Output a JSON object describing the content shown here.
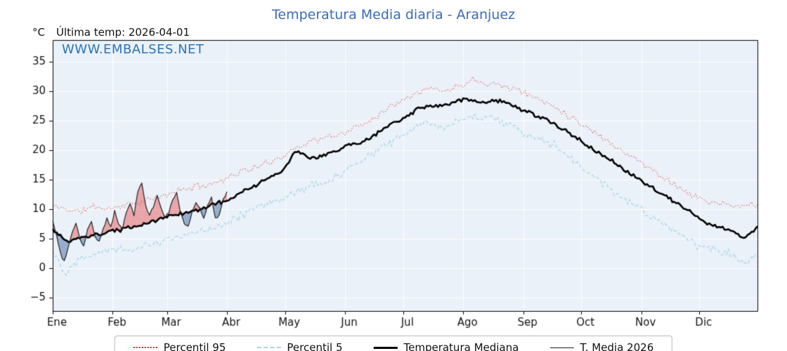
{
  "header": {
    "title": "Temperatura Media diaria - Aranjuez",
    "unit_label": "°C",
    "subtitle": "Última temp: 2026-04-01",
    "watermark": "WWW.EMBALSES.NET"
  },
  "colors": {
    "title": "#3a6bb8",
    "watermark": "#2e74b5",
    "plot_bg": "#eaf1f8",
    "grid": "#ffffff",
    "axis": "#000000",
    "tick_text": "#111111",
    "p95": "#e02020",
    "p5": "#a6d4e6",
    "median": "#000000",
    "t2026": "#222222",
    "fill_above": "rgba(229,92,92,0.50)",
    "fill_below": "rgba(93,130,175,0.60)"
  },
  "legend": {
    "items": [
      {
        "label": "Percentil 95",
        "color_key": "p95",
        "line": "dotted",
        "weight": 2
      },
      {
        "label": "Percentil 5",
        "color_key": "p5",
        "line": "dashed",
        "weight": 2
      },
      {
        "label": "Temperatura Mediana",
        "color_key": "median",
        "line": "solid",
        "weight": 3
      },
      {
        "label": "T. Media 2026",
        "color_key": "t2026",
        "line": "solid",
        "weight": 1
      }
    ]
  },
  "chart_data": {
    "type": "line",
    "title": "Temperatura Media diaria - Aranjuez",
    "subtitle": "Última temp: 2026-04-01",
    "ylabel": "°C",
    "x_axis": {
      "tick_labels": [
        "Ene",
        "Feb",
        "Mar",
        "Abr",
        "May",
        "Jun",
        "Jul",
        "Ago",
        "Sep",
        "Oct",
        "Nov",
        "Dic"
      ],
      "tick_days": [
        0,
        31,
        59,
        90,
        120,
        151,
        181,
        212,
        243,
        273,
        304,
        334
      ],
      "range_days": [
        0,
        364
      ]
    },
    "y_axis": {
      "ticks": [
        -5,
        0,
        5,
        10,
        15,
        20,
        25,
        30,
        35
      ],
      "tick_labels": [
        "−5",
        "0",
        "5",
        "10",
        "15",
        "20",
        "25",
        "30",
        "35"
      ],
      "range": [
        -7.3,
        38.7
      ],
      "grid": true
    },
    "legend_position": "bottom-center",
    "series": [
      {
        "name": "Percentil 95",
        "style": "dotted",
        "sample_step_days": 7,
        "noise_amplitude": 0.7,
        "values": [
          10.5,
          10,
          9.5,
          10.5,
          10,
          10.5,
          11,
          11.5,
          12,
          13,
          13.5,
          14,
          14.5,
          15.5,
          16.5,
          17,
          18,
          19,
          20.5,
          21.5,
          22,
          22.5,
          23.5,
          24.5,
          26,
          27.5,
          29,
          30,
          30.5,
          30,
          31,
          32,
          31.5,
          31,
          30.5,
          29.5,
          28.5,
          27.5,
          26,
          24.5,
          23,
          21.5,
          20,
          18.5,
          17,
          15.5,
          14,
          12.5,
          11.5,
          11,
          10.5,
          10.5,
          11
        ]
      },
      {
        "name": "Percentil 5",
        "style": "dashed",
        "sample_step_days": 7,
        "noise_amplitude": 0.9,
        "values": [
          3,
          -1,
          2,
          2.5,
          3,
          3.5,
          3,
          4,
          4.5,
          5,
          5.5,
          6.5,
          7,
          8,
          9,
          10,
          11,
          12,
          13,
          14,
          14.5,
          15.5,
          17,
          18.5,
          20,
          21.5,
          23,
          24,
          24.5,
          24,
          25,
          25.5,
          26,
          25,
          24,
          22.5,
          21.5,
          21,
          19,
          17,
          15.5,
          13.5,
          12,
          10.5,
          9,
          7.5,
          6,
          4.5,
          3.5,
          3,
          2.5,
          1,
          2.5
        ]
      },
      {
        "name": "Temperatura Mediana",
        "style": "solid-thick",
        "sample_step_days": 7,
        "noise_amplitude": 0.4,
        "values": [
          6.5,
          4.5,
          5,
          5.5,
          6,
          6.5,
          7,
          7.5,
          8.5,
          9,
          9.5,
          10,
          11,
          11.5,
          13,
          14,
          15.5,
          16.5,
          20,
          18.5,
          19,
          20,
          21,
          21.5,
          23,
          24.5,
          25.5,
          27,
          27.5,
          27.5,
          28.5,
          28.5,
          28,
          28.5,
          27.5,
          26.5,
          25.5,
          24.5,
          23,
          21.5,
          20,
          18.5,
          17,
          15.5,
          14,
          12.5,
          11,
          9.5,
          8,
          7,
          6.5,
          5,
          7
        ]
      },
      {
        "name": "T. Media 2026",
        "style": "solid-thin",
        "noise_amplitude": 0.3,
        "last_day": 90,
        "points_day_value": [
          [
            0,
            8
          ],
          [
            2,
            5.5
          ],
          [
            4,
            2.5
          ],
          [
            6,
            1
          ],
          [
            8,
            3.5
          ],
          [
            10,
            6
          ],
          [
            12,
            7.5
          ],
          [
            14,
            5
          ],
          [
            16,
            3.8
          ],
          [
            18,
            6.5
          ],
          [
            20,
            8
          ],
          [
            22,
            5
          ],
          [
            24,
            4.5
          ],
          [
            26,
            6.5
          ],
          [
            28,
            8.5
          ],
          [
            30,
            7
          ],
          [
            32,
            9.5
          ],
          [
            34,
            7.5
          ],
          [
            36,
            6.5
          ],
          [
            38,
            9.5
          ],
          [
            40,
            11
          ],
          [
            42,
            9
          ],
          [
            44,
            13
          ],
          [
            46,
            14.5
          ],
          [
            48,
            10.5
          ],
          [
            50,
            9
          ],
          [
            52,
            10.5
          ],
          [
            54,
            12.5
          ],
          [
            56,
            10
          ],
          [
            58,
            8.5
          ],
          [
            60,
            9.5
          ],
          [
            62,
            11.5
          ],
          [
            64,
            12.8
          ],
          [
            66,
            9.5
          ],
          [
            68,
            7.5
          ],
          [
            70,
            7
          ],
          [
            72,
            9.5
          ],
          [
            74,
            11
          ],
          [
            76,
            10
          ],
          [
            78,
            8.5
          ],
          [
            80,
            10.5
          ],
          [
            82,
            12
          ],
          [
            84,
            8.5
          ],
          [
            86,
            9
          ],
          [
            88,
            11.5
          ],
          [
            90,
            13.2
          ]
        ]
      }
    ],
    "fills": [
      {
        "between": [
          "T. Media 2026",
          "Temperatura Mediana"
        ],
        "where": "above",
        "color_key": "fill_above"
      },
      {
        "between": [
          "T. Media 2026",
          "Temperatura Mediana"
        ],
        "where": "below",
        "color_key": "fill_below"
      }
    ]
  }
}
